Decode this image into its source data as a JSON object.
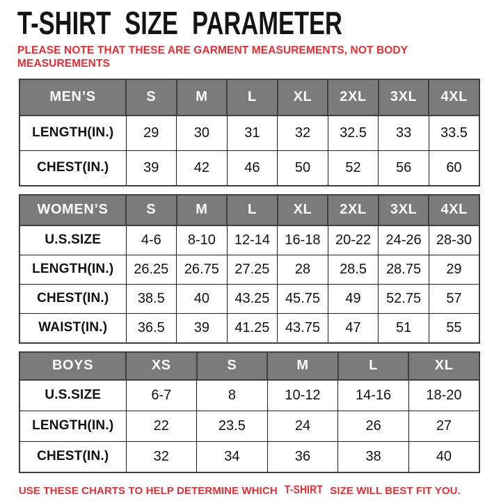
{
  "header": {
    "title": "T-SHIRT SIZE PARAMETER",
    "subtitle": "PLEASE NOTE THAT THESE ARE GARMENT MEASUREMENTS, NOT BODY MEASUREMENTS"
  },
  "tables": [
    {
      "name": "mens",
      "header": [
        "MEN’S",
        "S",
        "M",
        "L",
        "XL",
        "2XL",
        "3XL",
        "4XL"
      ],
      "rows": [
        [
          "LENGTH(IN.)",
          "29",
          "30",
          "31",
          "32",
          "32.5",
          "33",
          "33.5"
        ],
        [
          "CHEST(IN.)",
          "39",
          "42",
          "46",
          "50",
          "52",
          "56",
          "60"
        ]
      ]
    },
    {
      "name": "womens",
      "header": [
        "WOMEN’S",
        "S",
        "M",
        "L",
        "XL",
        "2XL",
        "3XL",
        "4XL"
      ],
      "rows": [
        [
          "U.S.SIZE",
          "4-6",
          "8-10",
          "12-14",
          "16-18",
          "20-22",
          "24-26",
          "28-30"
        ],
        [
          "LENGTH(IN.)",
          "26.25",
          "26.75",
          "27.25",
          "28",
          "28.5",
          "28.75",
          "29"
        ],
        [
          "CHEST(IN.)",
          "38.5",
          "40",
          "43.25",
          "45.75",
          "49",
          "52.75",
          "57"
        ],
        [
          "WAIST(IN.)",
          "36.5",
          "39",
          "41.25",
          "43.75",
          "47",
          "51",
          "55"
        ]
      ]
    },
    {
      "name": "boys",
      "header": [
        "BOYS",
        "XS",
        "S",
        "M",
        "L",
        "XL"
      ],
      "rows": [
        [
          "U.S.SIZE",
          "6-7",
          "8",
          "10-12",
          "14-16",
          "18-20"
        ],
        [
          "LENGTH(IN.)",
          "22",
          "23.5",
          "24",
          "26",
          "27"
        ],
        [
          "CHEST(IN.)",
          "32",
          "34",
          "36",
          "38",
          "40"
        ]
      ]
    }
  ],
  "footer": {
    "pre": "USE THESE CHARTS TO HELP DETERMINE WHICH",
    "emphasis": "T-SHIRT",
    "post": "SIZE WILL BEST FIT YOU."
  },
  "colors": {
    "accent_red": "#ee2b30",
    "table_header_bg": "#7b7b7b",
    "table_header_text": "#ffffff",
    "title_text": "#141414"
  }
}
